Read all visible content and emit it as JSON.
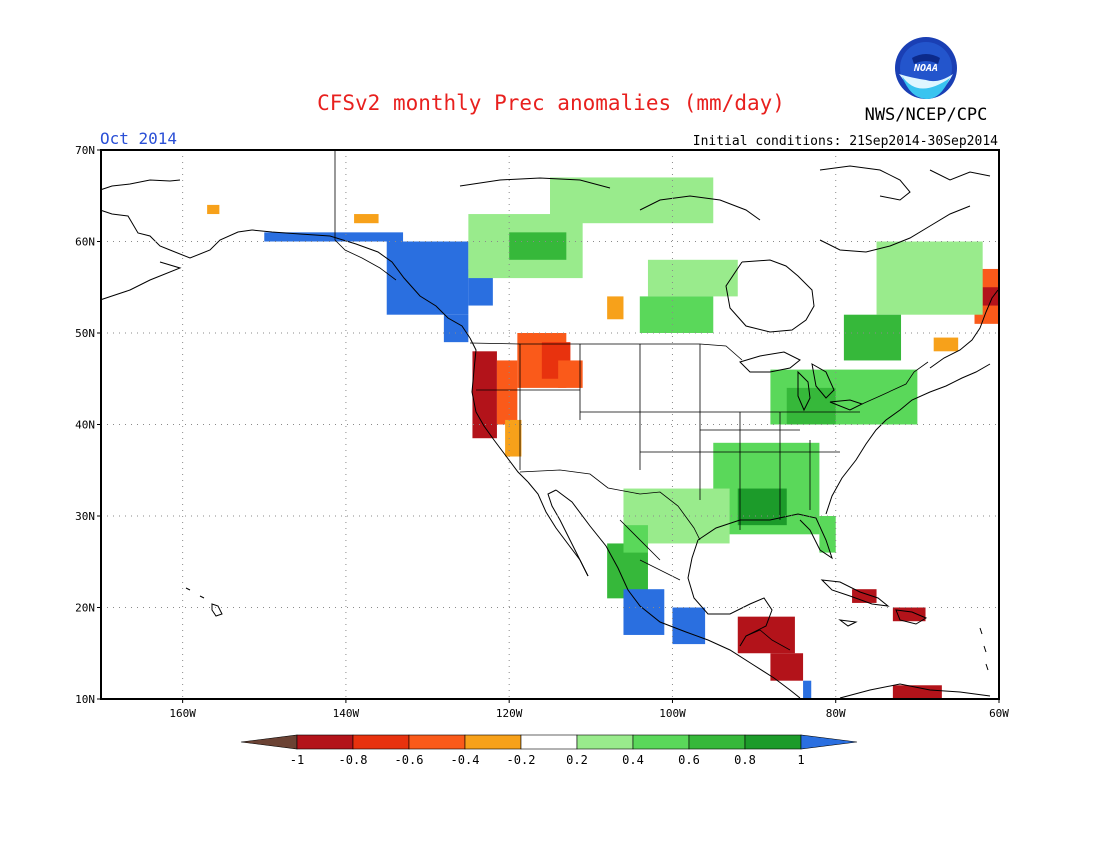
{
  "title": "CFSv2 monthly Prec anomalies (mm/day)",
  "period": "Oct 2014",
  "agency": "NWS/NCEP/CPC",
  "logo_text": "NOAA",
  "initial_conditions": "Initial conditions: 21Sep2014-30Sep2014",
  "colors": {
    "title": "#e8201e",
    "period": "#2a4fd6",
    "frame": "#000000",
    "grid": "#8a8a8a",
    "scale": [
      "#6b4234",
      "#b3131a",
      "#e8320e",
      "#fa5a1a",
      "#f7a11a",
      "#ffffff",
      "#99eb8c",
      "#5ad85a",
      "#36b83a",
      "#1c9b2a",
      "#2a6fe0"
    ]
  },
  "lat_labels": [
    "70N",
    "60N",
    "50N",
    "40N",
    "30N",
    "20N",
    "10N"
  ],
  "lon_labels": [
    "160W",
    "140W",
    "120W",
    "100W",
    "80W",
    "60W"
  ],
  "colorbar_labels": [
    "-1",
    "-0.8",
    "-0.6",
    "-0.4",
    "-0.2",
    "0.2",
    "0.4",
    "0.6",
    "0.8",
    "1"
  ],
  "chart_data": {
    "type": "heatmap",
    "title": "CFSv2 monthly Prec anomalies (mm/day)",
    "units": "mm/day",
    "valid_month": "Oct 2014",
    "lon_range": [
      -170,
      -60
    ],
    "lat_range": [
      10,
      70
    ],
    "x_ticks": [
      "160W",
      "140W",
      "120W",
      "100W",
      "80W",
      "60W"
    ],
    "y_ticks": [
      "70N",
      "60N",
      "50N",
      "40N",
      "30N",
      "20N",
      "10N"
    ],
    "grid": "dotted every 20 deg lon, 10 deg lat",
    "color_levels": [
      -1,
      -0.8,
      -0.6,
      -0.4,
      -0.2,
      0.2,
      0.4,
      0.6,
      0.8,
      1
    ],
    "regions": [
      {
        "lon": [
          -124.5,
          -121.5
        ],
        "lat": [
          38.5,
          48
        ],
        "value": -0.9
      },
      {
        "lon": [
          -121.5,
          -119
        ],
        "lat": [
          40,
          47
        ],
        "value": -0.5
      },
      {
        "lon": [
          -119,
          -113
        ],
        "lat": [
          44,
          50
        ],
        "value": -0.5
      },
      {
        "lon": [
          -116,
          -112.5
        ],
        "lat": [
          45,
          49
        ],
        "value": -0.7
      },
      {
        "lon": [
          -114,
          -111
        ],
        "lat": [
          44,
          47
        ],
        "value": -0.5
      },
      {
        "lon": [
          -120.5,
          -118.5
        ],
        "lat": [
          36.5,
          40.5
        ],
        "value": -0.3
      },
      {
        "lon": [
          -108,
          -106
        ],
        "lat": [
          51.5,
          54
        ],
        "value": -0.3
      },
      {
        "lon": [
          -157,
          -155.5
        ],
        "lat": [
          63,
          64
        ],
        "value": -0.3
      },
      {
        "lon": [
          -139,
          -136
        ],
        "lat": [
          62,
          63
        ],
        "value": -0.3
      },
      {
        "lon": [
          -63,
          -60
        ],
        "lat": [
          51,
          57
        ],
        "value": -0.6
      },
      {
        "lon": [
          -62,
          -60
        ],
        "lat": [
          53,
          55
        ],
        "value": -0.9
      },
      {
        "lon": [
          -68,
          -65
        ],
        "lat": [
          48,
          49.5
        ],
        "value": -0.4
      },
      {
        "lon": [
          -150,
          -133
        ],
        "lat": [
          60,
          61
        ],
        "value": 1.0
      },
      {
        "lon": [
          -135,
          -125
        ],
        "lat": [
          52,
          60
        ],
        "value": 1.0
      },
      {
        "lon": [
          -128,
          -125
        ],
        "lat": [
          49,
          52
        ],
        "value": 1.0
      },
      {
        "lon": [
          -125,
          -122
        ],
        "lat": [
          53,
          57
        ],
        "value": 1.0
      },
      {
        "lon": [
          -125,
          -111
        ],
        "lat": [
          56,
          63
        ],
        "value": 0.3
      },
      {
        "lon": [
          -120,
          -113
        ],
        "lat": [
          58,
          61
        ],
        "value": 0.7
      },
      {
        "lon": [
          -115,
          -95
        ],
        "lat": [
          62,
          67
        ],
        "value": 0.3
      },
      {
        "lon": [
          -103,
          -92
        ],
        "lat": [
          54,
          58
        ],
        "value": 0.3
      },
      {
        "lon": [
          -104,
          -95
        ],
        "lat": [
          50,
          54
        ],
        "value": 0.5
      },
      {
        "lon": [
          -75,
          -62
        ],
        "lat": [
          52,
          60
        ],
        "value": 0.3
      },
      {
        "lon": [
          -79,
          -72
        ],
        "lat": [
          47,
          52
        ],
        "value": 0.6
      },
      {
        "lon": [
          -88,
          -70
        ],
        "lat": [
          40,
          46
        ],
        "value": 0.5
      },
      {
        "lon": [
          -86,
          -80
        ],
        "lat": [
          40,
          44
        ],
        "value": 0.7
      },
      {
        "lon": [
          -95,
          -82
        ],
        "lat": [
          28,
          38
        ],
        "value": 0.5
      },
      {
        "lon": [
          -92,
          -86
        ],
        "lat": [
          29,
          33
        ],
        "value": 0.8
      },
      {
        "lon": [
          -82,
          -80
        ],
        "lat": [
          26,
          30
        ],
        "value": 0.5
      },
      {
        "lon": [
          -106,
          -93
        ],
        "lat": [
          27,
          33
        ],
        "value": 0.3
      },
      {
        "lon": [
          -108,
          -103
        ],
        "lat": [
          21,
          27
        ],
        "value": 0.6
      },
      {
        "lon": [
          -106,
          -101
        ],
        "lat": [
          17,
          22
        ],
        "value": 1.0
      },
      {
        "lon": [
          -100,
          -96
        ],
        "lat": [
          16,
          20
        ],
        "value": 1.0
      },
      {
        "lon": [
          -106,
          -103
        ],
        "lat": [
          26,
          29
        ],
        "value": 0.5
      },
      {
        "lon": [
          -92,
          -85
        ],
        "lat": [
          15,
          19
        ],
        "value": -0.9
      },
      {
        "lon": [
          -88,
          -84
        ],
        "lat": [
          12,
          15
        ],
        "value": -1.0
      },
      {
        "lon": [
          -84,
          -83
        ],
        "lat": [
          10,
          12
        ],
        "value": 1.0
      },
      {
        "lon": [
          -78,
          -75
        ],
        "lat": [
          20.5,
          22
        ],
        "value": -0.9
      },
      {
        "lon": [
          -73,
          -69
        ],
        "lat": [
          18.5,
          20
        ],
        "value": -1.0
      },
      {
        "lon": [
          -73,
          -67
        ],
        "lat": [
          10,
          11.5
        ],
        "value": -0.9
      }
    ]
  }
}
